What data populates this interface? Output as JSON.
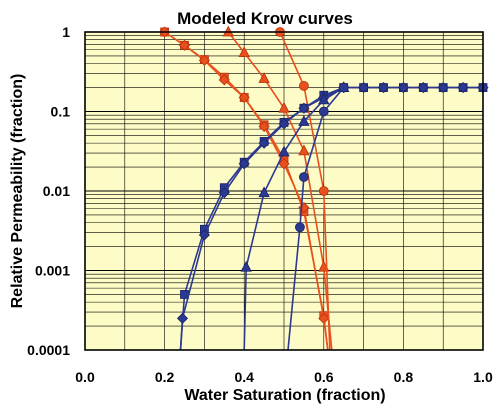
{
  "chart_data": {
    "type": "line",
    "title": "Modeled Krow curves",
    "xlabel": "Water Saturation (fraction)",
    "ylabel": "Relative Permeability (fraction)",
    "xlim": [
      0,
      1
    ],
    "ylim": [
      0.0001,
      1
    ],
    "yscale": "log",
    "grid": true,
    "x_ticks": [
      "0.0",
      "0.2",
      "0.4",
      "0.6",
      "0.8",
      "1.0"
    ],
    "y_ticks": [
      "1",
      "0.1",
      "0.01",
      "0.001",
      "0.0001"
    ],
    "colors": {
      "background": "#fdfbc6",
      "oil": "#e8501e",
      "water": "#2b3990",
      "oil_edge": "#b5300c",
      "water_edge": "#1a2266"
    },
    "series": [
      {
        "phase": "oil",
        "marker": "square",
        "x": [
          0.2,
          0.25,
          0.3,
          0.35,
          0.4,
          0.45,
          0.5,
          0.55,
          0.6,
          0.61
        ],
        "y": [
          1,
          0.68,
          0.45,
          0.27,
          0.15,
          0.068,
          0.025,
          0.0055,
          0.00027,
          0.0001
        ]
      },
      {
        "phase": "oil",
        "marker": "diamond",
        "x": [
          0.2,
          0.25,
          0.3,
          0.35,
          0.4,
          0.45,
          0.5,
          0.55,
          0.6,
          0.61
        ],
        "y": [
          1,
          0.68,
          0.44,
          0.25,
          0.15,
          0.065,
          0.022,
          0.0062,
          0.00025,
          0.0001
        ]
      },
      {
        "phase": "oil",
        "marker": "triangle",
        "x": [
          0.36,
          0.4,
          0.45,
          0.5,
          0.55,
          0.6,
          0.62
        ],
        "y": [
          1,
          0.55,
          0.26,
          0.11,
          0.032,
          0.0011,
          0.0001
        ]
      },
      {
        "phase": "oil",
        "marker": "circle",
        "x": [
          0.49,
          0.55,
          0.6,
          0.615
        ],
        "y": [
          1,
          0.21,
          0.01,
          0.0001
        ]
      },
      {
        "phase": "water",
        "marker": "square",
        "x": [
          0.24,
          0.25,
          0.3,
          0.35,
          0.4,
          0.45,
          0.5,
          0.55,
          0.6,
          0.65,
          0.7,
          0.75,
          0.8,
          0.85,
          0.9,
          0.95,
          1.0
        ],
        "y": [
          0.0001,
          0.0005,
          0.0033,
          0.011,
          0.023,
          0.042,
          0.073,
          0.11,
          0.16,
          0.2,
          0.2,
          0.2,
          0.2,
          0.2,
          0.2,
          0.2,
          0.2
        ]
      },
      {
        "phase": "water",
        "marker": "diamond",
        "x": [
          0.24,
          0.245,
          0.3,
          0.35,
          0.4,
          0.45,
          0.5,
          0.55,
          0.6,
          0.65,
          0.7,
          0.75,
          0.8,
          0.85,
          0.9,
          0.95,
          1.0
        ],
        "y": [
          0.0001,
          0.00025,
          0.0028,
          0.0095,
          0.022,
          0.04,
          0.07,
          0.11,
          0.15,
          0.2,
          0.2,
          0.2,
          0.2,
          0.2,
          0.2,
          0.2,
          0.2
        ]
      },
      {
        "phase": "water",
        "marker": "triangle",
        "x": [
          0.4,
          0.405,
          0.45,
          0.5,
          0.55,
          0.6,
          0.65
        ],
        "y": [
          0.0001,
          0.0011,
          0.0095,
          0.031,
          0.075,
          0.14,
          0.2
        ]
      },
      {
        "phase": "water",
        "marker": "circle",
        "x": [
          0.51,
          0.54,
          0.55,
          0.6,
          0.65
        ],
        "y": [
          0.0001,
          0.0035,
          0.015,
          0.1,
          0.2
        ]
      }
    ]
  }
}
